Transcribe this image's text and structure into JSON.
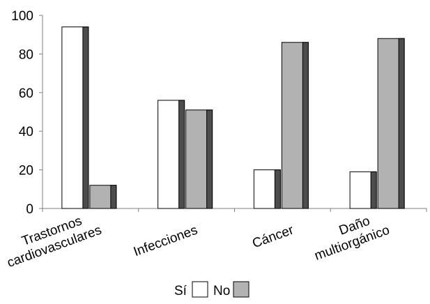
{
  "chart_data": {
    "type": "bar",
    "categories": [
      [
        "Trastornos",
        "cardiovasculares"
      ],
      [
        "Infecciones"
      ],
      [
        "Cáncer"
      ],
      [
        "Daño",
        "multiorgánico"
      ]
    ],
    "series": [
      {
        "name": "Sí",
        "values": [
          94,
          56,
          20,
          19
        ],
        "color": "#ffffff"
      },
      {
        "name": "No",
        "values": [
          12,
          51,
          86,
          88
        ],
        "color": "#b2b2b2"
      }
    ],
    "bar_shade_color": "#4d4d4d",
    "ylim": [
      0,
      100
    ],
    "yticks": [
      0,
      20,
      40,
      60,
      80,
      100
    ],
    "grid": false,
    "legend_position": "bottom-center",
    "title": "",
    "xlabel": "",
    "ylabel": ""
  }
}
